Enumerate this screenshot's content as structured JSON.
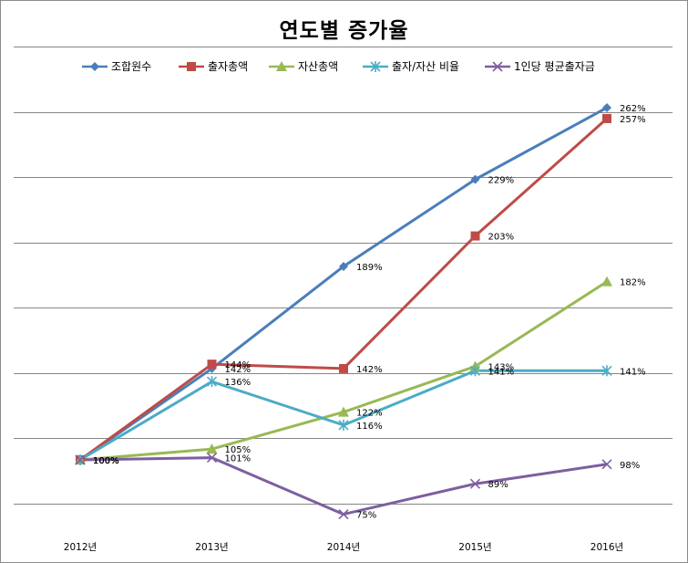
{
  "chart_data": {
    "type": "line",
    "title": "연도별 증가율",
    "xlabel": "",
    "ylabel": "",
    "categories": [
      "2012년",
      "2013년",
      "2014년",
      "2015년",
      "2016년"
    ],
    "ylim": [
      50,
      300
    ],
    "grid": true,
    "legend": "top",
    "series": [
      {
        "name": "조합원수",
        "color": "#4a7ebb",
        "marker": "diamond",
        "values": [
          100,
          142,
          189,
          229,
          262
        ],
        "labels": [
          "100%",
          "142%",
          "189%",
          "229%",
          "262%"
        ]
      },
      {
        "name": "출자총액",
        "color": "#be4b48",
        "marker": "square",
        "values": [
          100,
          144,
          142,
          203,
          257
        ],
        "labels": [
          "100%",
          "144%",
          "142%",
          "203%",
          "257%"
        ]
      },
      {
        "name": "자산총액",
        "color": "#98b954",
        "marker": "triangle",
        "values": [
          100,
          105,
          122,
          143,
          182
        ],
        "labels": [
          "100%",
          "105%",
          "122%",
          "143%",
          "182%"
        ]
      },
      {
        "name": "출자/자산 비율",
        "color": "#4bacc6",
        "marker": "star",
        "values": [
          100,
          136,
          116,
          141,
          141
        ],
        "labels": [
          "100%",
          "136%",
          "116%",
          "141%",
          "141%"
        ]
      },
      {
        "name": "1인당 평균출자금",
        "color": "#7d5fa0",
        "marker": "x",
        "values": [
          100,
          101,
          75,
          89,
          98
        ],
        "labels": [
          "100%",
          "101%",
          "75%",
          "89%",
          "98%"
        ]
      }
    ]
  }
}
